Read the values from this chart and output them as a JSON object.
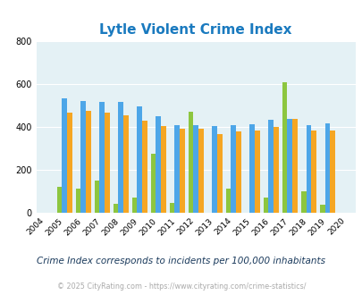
{
  "title": "Lytle Violent Crime Index",
  "years": [
    2004,
    2005,
    2006,
    2007,
    2008,
    2009,
    2010,
    2011,
    2012,
    2013,
    2014,
    2015,
    2016,
    2017,
    2018,
    2019,
    2020
  ],
  "lytle": [
    0,
    120,
    110,
    148,
    40,
    70,
    275,
    45,
    470,
    0,
    110,
    0,
    70,
    610,
    100,
    35,
    0
  ],
  "texas": [
    0,
    535,
    520,
    515,
    515,
    495,
    448,
    408,
    408,
    402,
    408,
    412,
    435,
    438,
    410,
    417,
    0
  ],
  "national": [
    0,
    468,
    475,
    465,
    452,
    427,
    403,
    390,
    392,
    368,
    379,
    384,
    400,
    438,
    382,
    384,
    0
  ],
  "lytle_color": "#8dc63f",
  "texas_color": "#4da6e8",
  "national_color": "#f5a623",
  "bg_color": "#e4f1f5",
  "ylim": [
    0,
    800
  ],
  "yticks": [
    0,
    200,
    400,
    600,
    800
  ],
  "subtitle": "Crime Index corresponds to incidents per 100,000 inhabitants",
  "footer": "© 2025 CityRating.com - https://www.cityrating.com/crime-statistics/",
  "title_color": "#1a7abf",
  "subtitle_color": "#1a3a5c",
  "footer_color": "#aaaaaa"
}
